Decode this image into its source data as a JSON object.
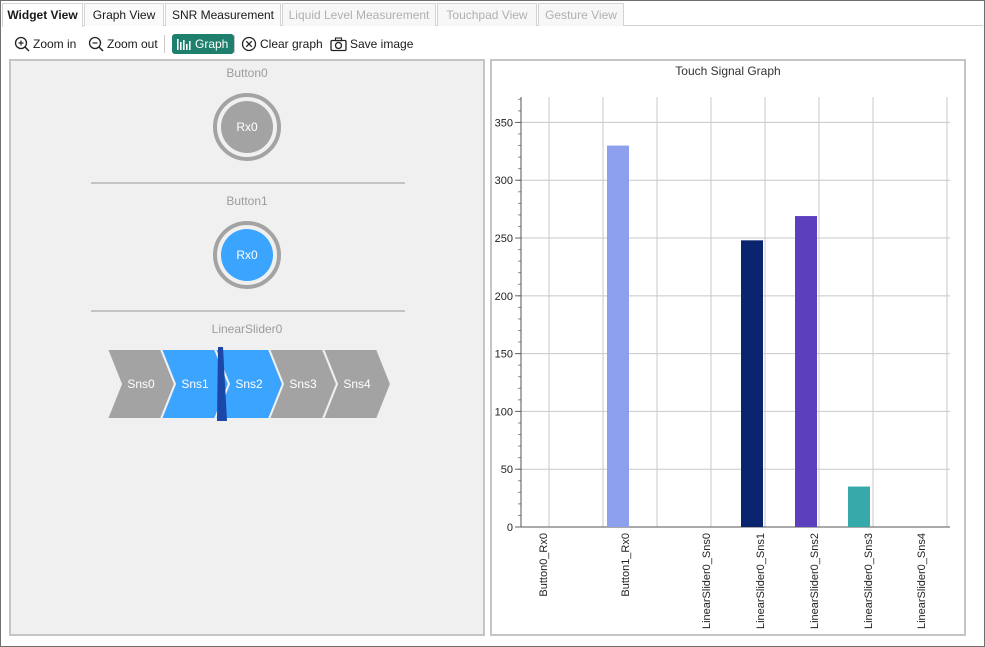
{
  "tabs": [
    {
      "label": "Widget View",
      "state": "active"
    },
    {
      "label": "Graph View",
      "state": "normal"
    },
    {
      "label": "SNR Measurement",
      "state": "normal"
    },
    {
      "label": "Liquid Level Measurement",
      "state": "disabled"
    },
    {
      "label": "Touchpad View",
      "state": "disabled"
    },
    {
      "label": "Gesture View",
      "state": "disabled"
    }
  ],
  "toolbar": {
    "zoom_in": "Zoom in",
    "zoom_out": "Zoom out",
    "graph": "Graph",
    "clear_graph": "Clear graph",
    "save_image": "Save image"
  },
  "widgets": {
    "button0": {
      "title": "Button0",
      "sensor": "Rx0",
      "active": false
    },
    "button1": {
      "title": "Button1",
      "sensor": "Rx0",
      "active": true
    },
    "slider": {
      "title": "LinearSlider0",
      "segments": [
        {
          "label": "Sns0",
          "active": false
        },
        {
          "label": "Sns1",
          "active": true
        },
        {
          "label": "Sns2",
          "active": true
        },
        {
          "label": "Sns3",
          "active": false
        },
        {
          "label": "Sns4",
          "active": false
        }
      ]
    }
  },
  "colors": {
    "inactive": "#a3a3a4",
    "active": "#3aa4ff",
    "graph_button": "#1e7f6c"
  },
  "chart_data": {
    "type": "bar",
    "title": "Touch Signal Graph",
    "categories": [
      "Button0_Rx0",
      "Button1_Rx0",
      "LinearSlider0_Sns0",
      "LinearSlider0_Sns1",
      "LinearSlider0_Sns2",
      "LinearSlider0_Sns3",
      "LinearSlider0_Sns4"
    ],
    "values": [
      0,
      330,
      0,
      248,
      269,
      35,
      0
    ],
    "bar_colors": [
      "#8ca0ee",
      "#8ca0ee",
      "#8ca0ee",
      "#0b246e",
      "#5b3fbc",
      "#36aaaa",
      "#36aaaa"
    ],
    "yticks": [
      0,
      50,
      100,
      150,
      200,
      250,
      300,
      350
    ],
    "ylim": [
      0,
      372
    ],
    "grid": true,
    "xlabel": "",
    "ylabel": ""
  }
}
